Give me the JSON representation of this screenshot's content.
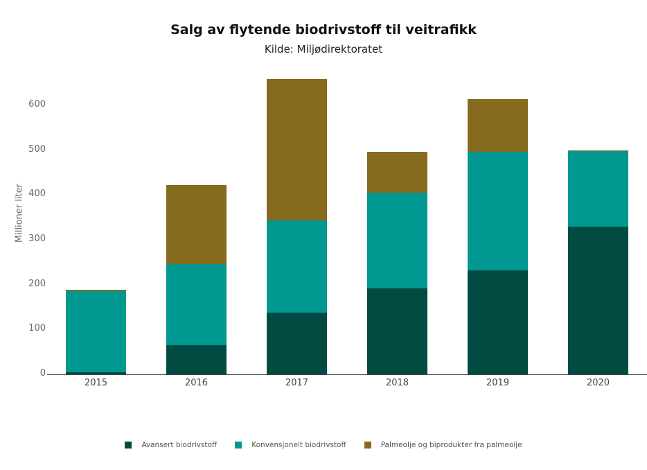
{
  "chart_data": {
    "type": "bar",
    "stacked": true,
    "title": "Salg av flytende biodrivstoff til veitrafikk",
    "subtitle": "Kilde: Miljødirektoratet",
    "xlabel": "",
    "ylabel": "Millioner liter",
    "ylim": [
      0,
      660
    ],
    "yticks": [
      0,
      100,
      200,
      300,
      400,
      500,
      600
    ],
    "grid": false,
    "legend_position": "bottom",
    "categories": [
      "2015",
      "2016",
      "2017",
      "2018",
      "2019",
      "2020"
    ],
    "series": [
      {
        "name": "Avansert biodrivstoff",
        "color": "#024b43",
        "values": [
          5,
          65,
          138,
          192,
          232,
          329
        ]
      },
      {
        "name": "Konvensjonelt biodrivstoff",
        "color": "#009890",
        "values": [
          180,
          181,
          205,
          213,
          264,
          169
        ]
      },
      {
        "name": "Palmeolje og biprodukter fra palmeolje",
        "color": "#866a1e",
        "values": [
          3,
          176,
          316,
          91,
          118,
          2
        ]
      }
    ]
  }
}
